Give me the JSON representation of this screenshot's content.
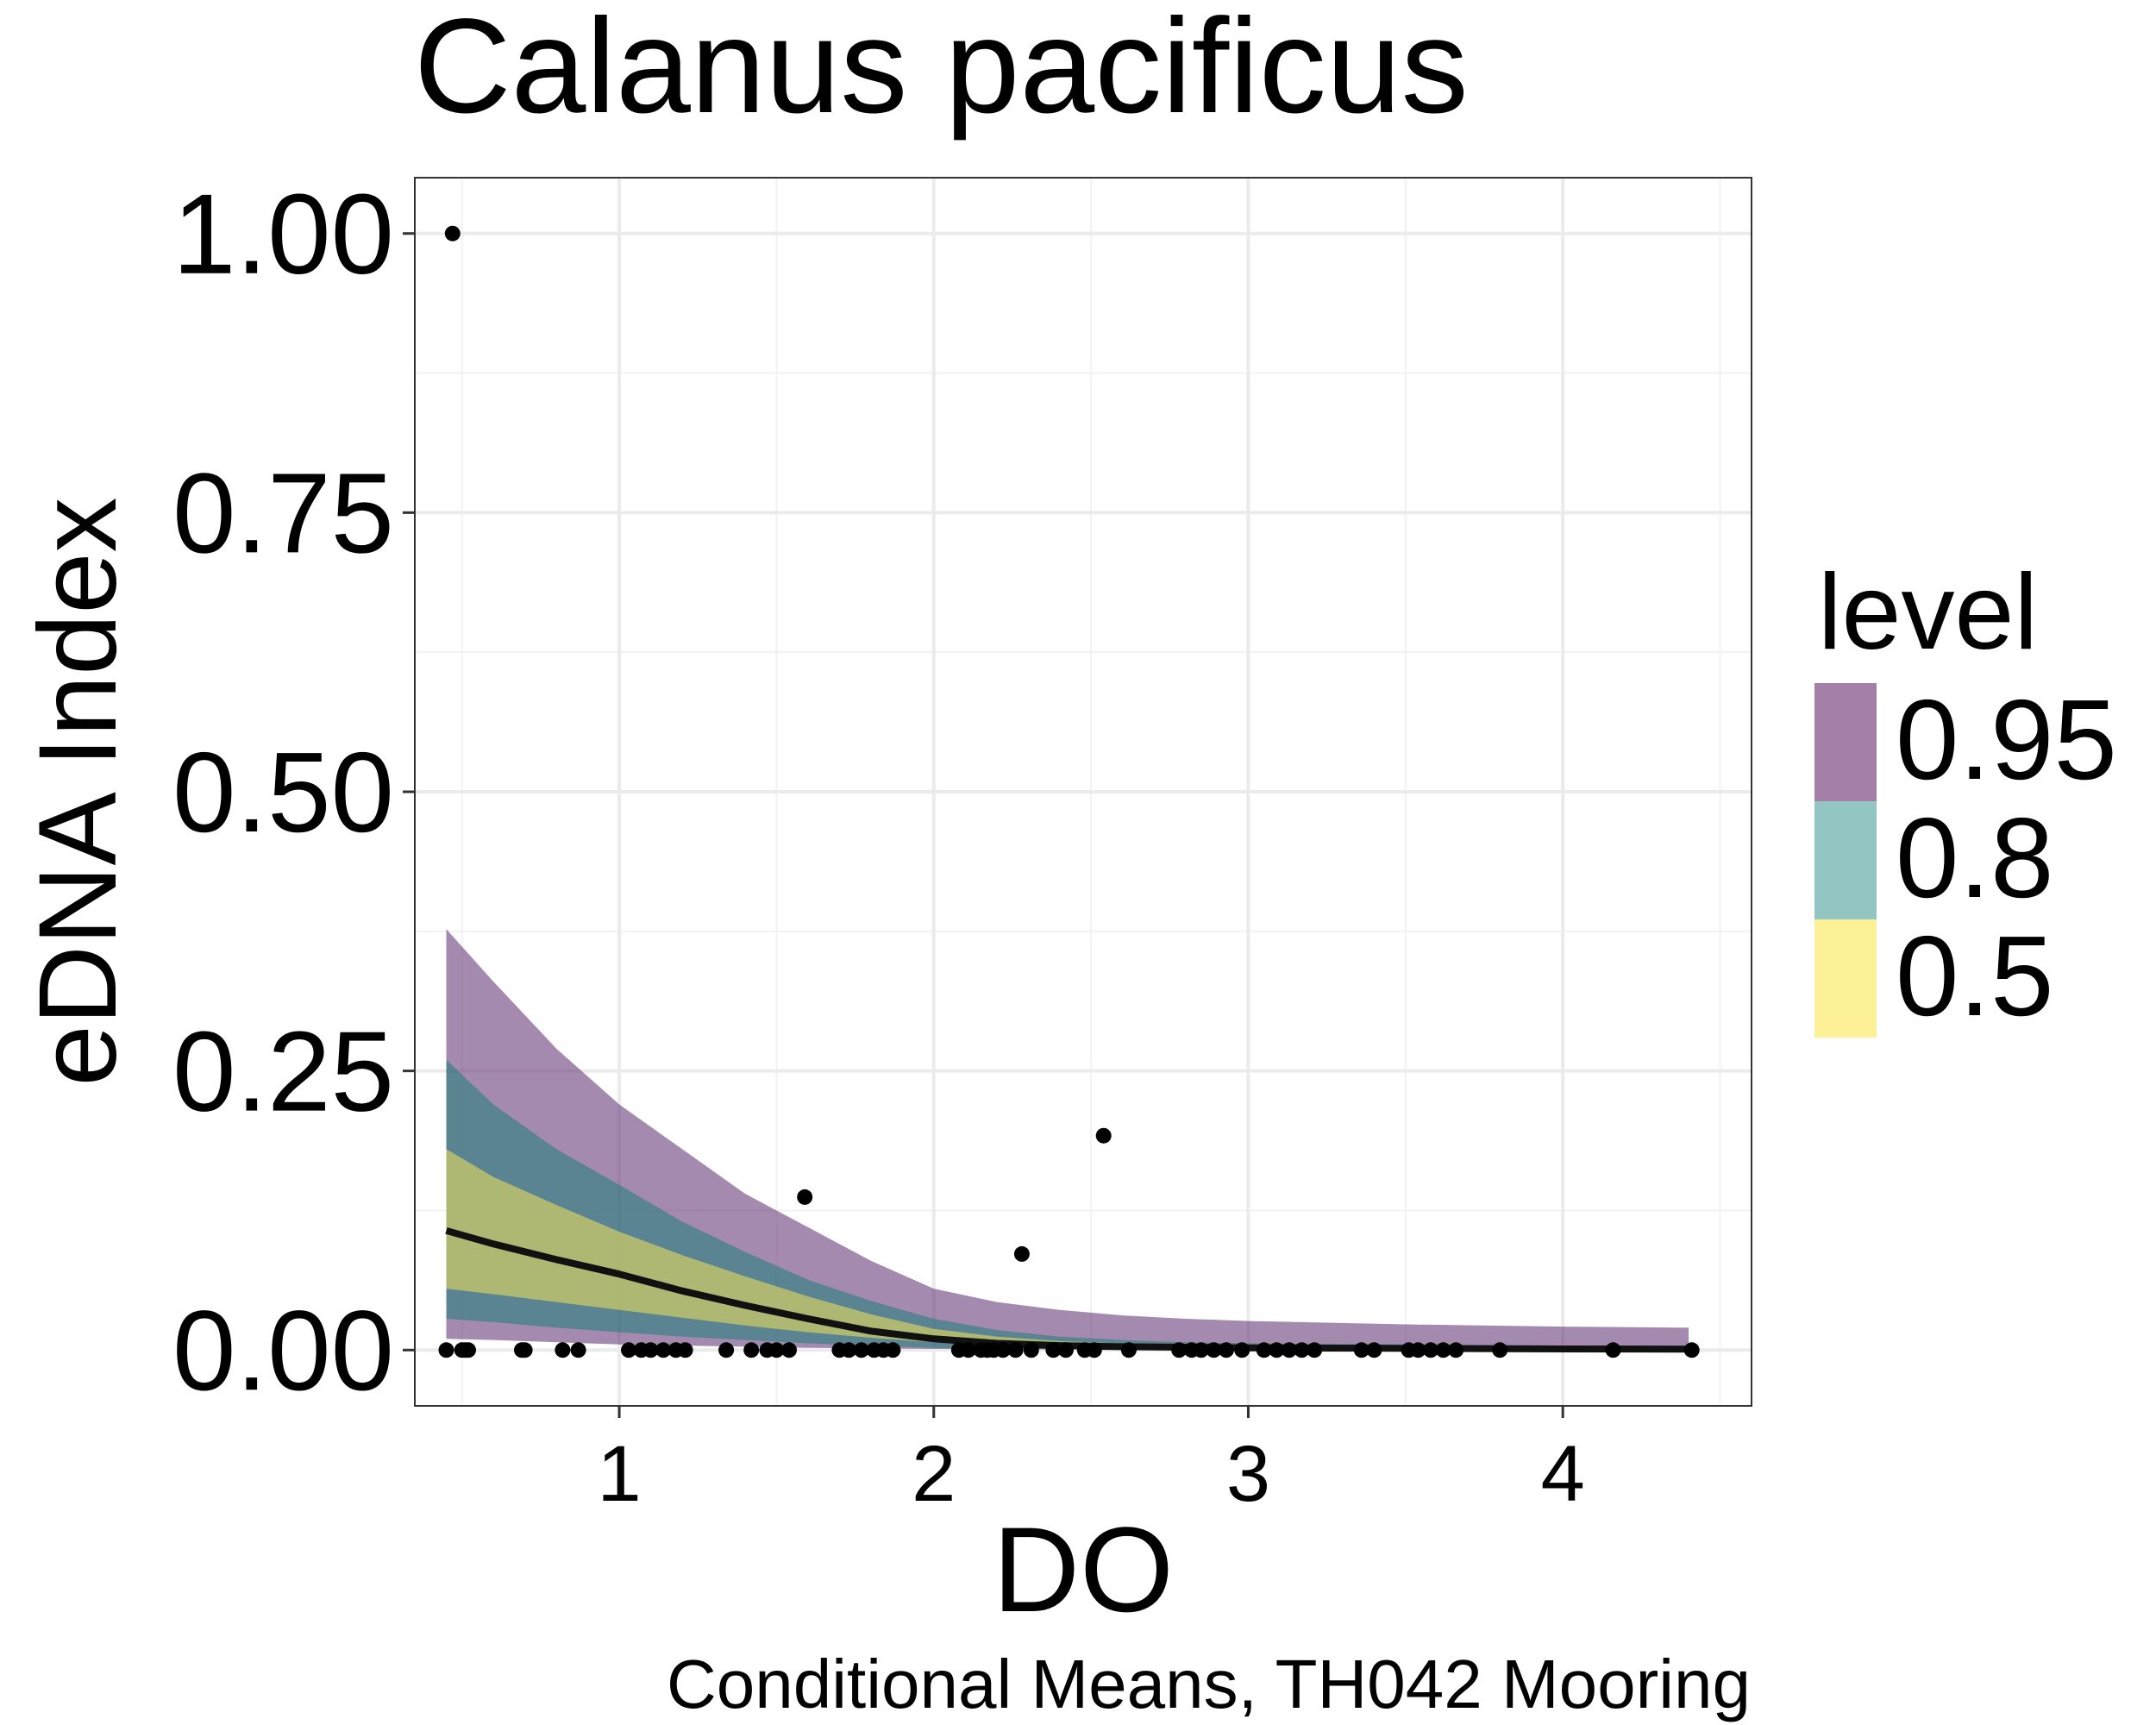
{
  "chart_data": {
    "type": "line",
    "title": "Calanus pacificus",
    "caption": "Conditional Means, TH042 Mooring",
    "xlabel": "DO",
    "ylabel": "eDNA Index",
    "xlim": [
      0.35,
      4.6
    ],
    "ylim": [
      -0.05,
      1.05
    ],
    "x_ticks": [
      1,
      2,
      3,
      4
    ],
    "x_tick_labels": [
      "1",
      "2",
      "3",
      "4"
    ],
    "y_ticks": [
      0,
      0.25,
      0.5,
      0.75,
      1.0
    ],
    "y_tick_labels": [
      "0.00",
      "0.25",
      "0.50",
      "0.75",
      "1.00"
    ],
    "grid": true,
    "legend": {
      "title": "level",
      "placement": "right",
      "entries": [
        {
          "label": "0.95",
          "color": "#a47fa8"
        },
        {
          "label": "0.8",
          "color": "#93c6c2"
        },
        {
          "label": "0.5",
          "color": "#fdf197"
        }
      ]
    },
    "line_color": "#111111",
    "point_color": "#000000",
    "bands": [
      {
        "level": "0.95",
        "color": "#5b2a6e",
        "x": [
          0.45,
          0.6,
          0.8,
          1.0,
          1.2,
          1.4,
          1.6,
          1.8,
          2.0,
          2.2,
          2.4,
          2.6,
          2.8,
          3.0,
          3.5,
          4.0,
          4.4
        ],
        "lower": [
          0.01,
          0.009,
          0.007,
          0.005,
          0.004,
          0.003,
          0.002,
          0.0015,
          0.001,
          0.0008,
          0.0006,
          0.0005,
          0.0004,
          0.0003,
          0.0002,
          0.0001,
          0.0001
        ],
        "upper": [
          0.377,
          0.33,
          0.27,
          0.22,
          0.18,
          0.14,
          0.11,
          0.08,
          0.055,
          0.043,
          0.036,
          0.031,
          0.028,
          0.026,
          0.023,
          0.021,
          0.02
        ]
      },
      {
        "level": "0.8",
        "color": "#1f7f7a",
        "x": [
          0.45,
          0.6,
          0.8,
          1.0,
          1.2,
          1.4,
          1.6,
          1.8,
          2.0,
          2.2,
          2.4,
          2.6,
          2.8,
          3.0,
          3.5,
          4.0,
          4.4
        ],
        "lower": [
          0.028,
          0.025,
          0.02,
          0.016,
          0.012,
          0.009,
          0.006,
          0.004,
          0.002,
          0.001,
          0.0008,
          0.0006,
          0.0005,
          0.0004,
          0.0003,
          0.0002,
          0.0001
        ],
        "upper": [
          0.26,
          0.22,
          0.18,
          0.148,
          0.115,
          0.088,
          0.063,
          0.044,
          0.028,
          0.018,
          0.012,
          0.009,
          0.007,
          0.006,
          0.005,
          0.004,
          0.004
        ]
      },
      {
        "level": "0.5",
        "color": "#f3e35a",
        "x": [
          0.45,
          0.6,
          0.8,
          1.0,
          1.2,
          1.4,
          1.6,
          1.8,
          2.0,
          2.2,
          2.4,
          2.6,
          2.8,
          3.0,
          3.5,
          4.0,
          4.4
        ],
        "lower": [
          0.055,
          0.05,
          0.043,
          0.036,
          0.029,
          0.022,
          0.016,
          0.011,
          0.007,
          0.004,
          0.003,
          0.002,
          0.0015,
          0.001,
          0.0008,
          0.0005,
          0.0004
        ],
        "upper": [
          0.18,
          0.155,
          0.13,
          0.106,
          0.085,
          0.066,
          0.048,
          0.032,
          0.019,
          0.012,
          0.008,
          0.006,
          0.005,
          0.004,
          0.003,
          0.0025,
          0.002
        ]
      }
    ],
    "line": {
      "x": [
        0.45,
        0.6,
        0.8,
        1.0,
        1.2,
        1.4,
        1.6,
        1.8,
        2.0,
        2.2,
        2.4,
        2.6,
        2.8,
        3.0,
        3.5,
        4.0,
        4.4
      ],
      "y": [
        0.107,
        0.095,
        0.081,
        0.068,
        0.053,
        0.04,
        0.028,
        0.017,
        0.01,
        0.006,
        0.004,
        0.003,
        0.0025,
        0.002,
        0.0015,
        0.001,
        0.0008
      ]
    },
    "points": {
      "x": [
        0.45,
        0.47,
        0.5,
        0.51,
        0.52,
        0.69,
        0.7,
        0.82,
        0.87,
        1.03,
        1.07,
        1.1,
        1.14,
        1.18,
        1.21,
        1.34,
        1.42,
        1.47,
        1.5,
        1.54,
        1.59,
        1.7,
        1.73,
        1.77,
        1.81,
        1.84,
        1.87,
        2.08,
        2.11,
        2.15,
        2.17,
        2.19,
        2.22,
        2.26,
        2.28,
        2.31,
        2.38,
        2.42,
        2.48,
        2.51,
        2.54,
        2.62,
        2.78,
        2.82,
        2.85,
        2.89,
        2.93,
        2.98,
        3.05,
        3.09,
        3.13,
        3.17,
        3.21,
        3.36,
        3.4,
        3.51,
        3.54,
        3.58,
        3.62,
        3.66,
        3.8,
        4.16,
        4.41
      ],
      "y": [
        0,
        1.0,
        0,
        0,
        0,
        0,
        0,
        0,
        0,
        0,
        0,
        0,
        0,
        0,
        0,
        0,
        0,
        0,
        0,
        0,
        0.137,
        0,
        0,
        0,
        0,
        0,
        0,
        0,
        0,
        0,
        0,
        0,
        0,
        0,
        0.086,
        0,
        0,
        0,
        0,
        0,
        0.192,
        0,
        0,
        0,
        0,
        0,
        0,
        0,
        0,
        0,
        0,
        0,
        0,
        0,
        0,
        0,
        0,
        0,
        0,
        0,
        0,
        0,
        0
      ]
    }
  }
}
